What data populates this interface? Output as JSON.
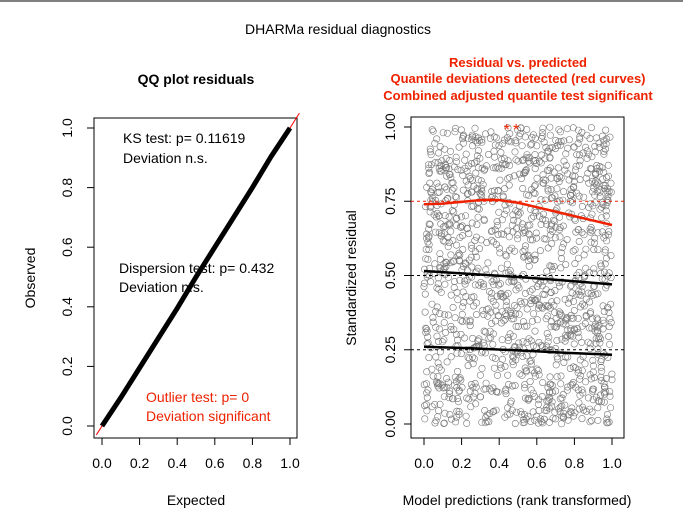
{
  "window": {
    "title": "DHARMa residual diagnostics"
  },
  "chart_data": [
    {
      "type": "scatter",
      "title": "QQ plot residuals",
      "xlabel": "Expected",
      "ylabel": "Observed",
      "xlim": [
        0,
        1
      ],
      "ylim": [
        0,
        1
      ],
      "xticks": [
        "0.0",
        "0.2",
        "0.4",
        "0.6",
        "0.8",
        "1.0"
      ],
      "yticks": [
        "0.0",
        "0.2",
        "0.4",
        "0.6",
        "0.8",
        "1.0"
      ],
      "reference_line": {
        "slope": 1,
        "intercept": 0,
        "color": "#ff0000"
      },
      "series": [
        {
          "values_description_x": [
            0,
            0.1,
            0.2,
            0.3,
            0.4,
            0.5,
            0.6,
            0.7,
            0.8,
            0.9,
            1.0
          ],
          "y": [
            0,
            0.095,
            0.195,
            0.295,
            0.395,
            0.5,
            0.6,
            0.7,
            0.8,
            0.905,
            1.0
          ],
          "color": "#000000"
        }
      ],
      "annotations": [
        {
          "lines": [
            "KS test: p= 0.11619",
            "Deviation  n.s."
          ],
          "color": "#000000"
        },
        {
          "lines": [
            "Dispersion test: p= 0.432",
            "Deviation  n.s."
          ],
          "color": "#000000"
        },
        {
          "lines": [
            "Outlier test: p= 0",
            "Deviation  significant"
          ],
          "color": "#ee2200"
        }
      ]
    },
    {
      "type": "scatter",
      "title_lines": [
        "Residual vs. predicted",
        "Quantile deviations detected (red curves)",
        "Combined adjusted quantile test significant"
      ],
      "title_color": "#ee2200",
      "xlabel": "Model predictions (rank transformed)",
      "ylabel": "Standardized residual",
      "xlim": [
        0,
        1
      ],
      "ylim": [
        0,
        1
      ],
      "xticks": [
        "0.0",
        "0.2",
        "0.4",
        "0.6",
        "0.8",
        "1.0"
      ],
      "yticks": [
        "0.00",
        "0.25",
        "0.50",
        "0.75",
        "1.00"
      ],
      "point_color": "#777777",
      "n_points": 1400,
      "reference_quantiles": [
        0.25,
        0.5,
        0.75
      ],
      "quantile_curves": [
        {
          "quantile": 0.25,
          "color": "#000000",
          "x": [
            0,
            0.25,
            0.5,
            0.75,
            1.0
          ],
          "y": [
            0.26,
            0.255,
            0.248,
            0.24,
            0.233
          ]
        },
        {
          "quantile": 0.5,
          "color": "#000000",
          "x": [
            0,
            0.25,
            0.5,
            0.75,
            1.0
          ],
          "y": [
            0.515,
            0.505,
            0.495,
            0.483,
            0.47
          ]
        },
        {
          "quantile": 0.75,
          "color": "#ee2200",
          "x": [
            0,
            0.1,
            0.2,
            0.3,
            0.35,
            0.4,
            0.5,
            0.6,
            0.7,
            0.8,
            0.9,
            1.0
          ],
          "y": [
            0.74,
            0.742,
            0.748,
            0.754,
            0.755,
            0.754,
            0.745,
            0.73,
            0.715,
            0.7,
            0.685,
            0.67
          ]
        }
      ],
      "outliers": [
        {
          "x": 0.44,
          "y": 1.0
        },
        {
          "x": 0.49,
          "y": 1.0
        }
      ],
      "outlier_color": "#ee2200"
    }
  ]
}
